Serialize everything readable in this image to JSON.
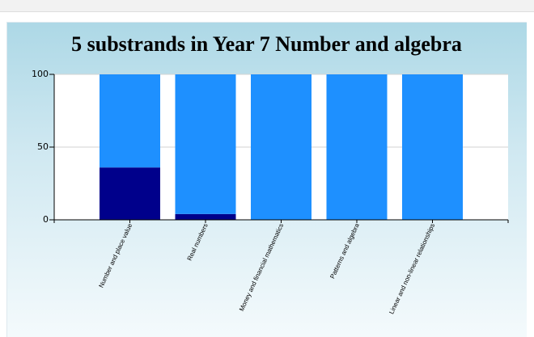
{
  "chart_data": {
    "type": "bar",
    "stacked": true,
    "title": "5 substrands in Year 7 Number and algebra",
    "xlabel": "",
    "ylabel": "",
    "ylim": [
      0,
      100
    ],
    "yticks": [
      0,
      50,
      100
    ],
    "grid": true,
    "categories": [
      "Number and place value",
      "Real numbers",
      "Money and financial mathematics",
      "Patterns and algebra",
      "Linear and non-linear relationships"
    ],
    "series": [
      {
        "color": "#00008b",
        "values": [
          36,
          4,
          0,
          0,
          0
        ]
      },
      {
        "color": "#1e90ff",
        "values": [
          64,
          96,
          100,
          100,
          100
        ]
      }
    ]
  }
}
